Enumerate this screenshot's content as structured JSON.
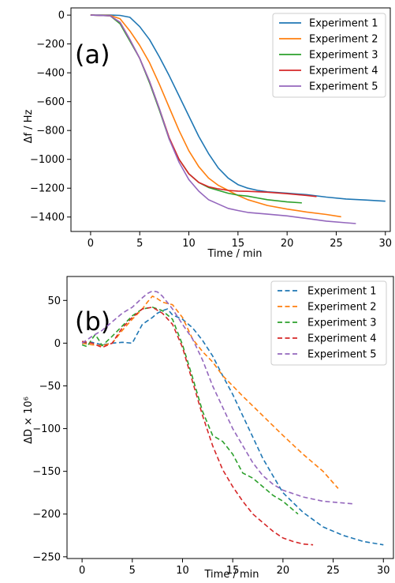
{
  "colors": {
    "experiment_1": "#1f77b4",
    "experiment_2": "#ff7f0e",
    "experiment_3": "#2ca02c",
    "experiment_4": "#d62728",
    "experiment_5": "#9467bd"
  },
  "chart_data": [
    {
      "type": "line",
      "panel_label": "(a)",
      "xlabel": "Time / min",
      "ylabel": "Δf / Hz",
      "xlim": [
        -2,
        30.5
      ],
      "ylim": [
        -1500,
        50
      ],
      "xticks": [
        0,
        5,
        10,
        15,
        20,
        25,
        30
      ],
      "yticks": [
        0,
        -200,
        -400,
        -600,
        -800,
        -1000,
        -1200,
        -1400
      ],
      "line_style": "solid",
      "grid": false,
      "legend_position": "top-right",
      "series": [
        {
          "name": "Experiment 1",
          "color": "#1f77b4",
          "points": [
            [
              0,
              0
            ],
            [
              2,
              0
            ],
            [
              3,
              -2
            ],
            [
              4,
              -15
            ],
            [
              5,
              -80
            ],
            [
              6,
              -170
            ],
            [
              7,
              -290
            ],
            [
              8,
              -420
            ],
            [
              9,
              -560
            ],
            [
              10,
              -700
            ],
            [
              11,
              -840
            ],
            [
              12,
              -960
            ],
            [
              13,
              -1060
            ],
            [
              14,
              -1130
            ],
            [
              15,
              -1175
            ],
            [
              16,
              -1200
            ],
            [
              17,
              -1215
            ],
            [
              18,
              -1225
            ],
            [
              20,
              -1235
            ],
            [
              22,
              -1245
            ],
            [
              24,
              -1262
            ],
            [
              26,
              -1275
            ],
            [
              28,
              -1282
            ],
            [
              30,
              -1290
            ]
          ]
        },
        {
          "name": "Experiment 2",
          "color": "#ff7f0e",
          "points": [
            [
              0,
              0
            ],
            [
              2,
              -2
            ],
            [
              3,
              -25
            ],
            [
              4,
              -110
            ],
            [
              5,
              -210
            ],
            [
              6,
              -330
            ],
            [
              7,
              -480
            ],
            [
              8,
              -640
            ],
            [
              9,
              -800
            ],
            [
              10,
              -940
            ],
            [
              11,
              -1050
            ],
            [
              12,
              -1130
            ],
            [
              13,
              -1180
            ],
            [
              14,
              -1215
            ],
            [
              15,
              -1250
            ],
            [
              16,
              -1280
            ],
            [
              18,
              -1320
            ],
            [
              20,
              -1345
            ],
            [
              22,
              -1365
            ],
            [
              24,
              -1382
            ],
            [
              25.5,
              -1398
            ]
          ]
        },
        {
          "name": "Experiment 3",
          "color": "#2ca02c",
          "points": [
            [
              0,
              0
            ],
            [
              2,
              -5
            ],
            [
              3,
              -60
            ],
            [
              4,
              -180
            ],
            [
              5,
              -300
            ],
            [
              6,
              -470
            ],
            [
              7,
              -660
            ],
            [
              8,
              -860
            ],
            [
              9,
              -1000
            ],
            [
              10,
              -1100
            ],
            [
              11,
              -1160
            ],
            [
              12,
              -1195
            ],
            [
              13,
              -1215
            ],
            [
              14,
              -1235
            ],
            [
              15,
              -1248
            ],
            [
              16,
              -1255
            ],
            [
              17,
              -1268
            ],
            [
              18,
              -1280
            ],
            [
              20,
              -1295
            ],
            [
              21.5,
              -1302
            ]
          ]
        },
        {
          "name": "Experiment 4",
          "color": "#d62728",
          "points": [
            [
              0,
              0
            ],
            [
              2,
              -5
            ],
            [
              3,
              -50
            ],
            [
              4,
              -170
            ],
            [
              5,
              -300
            ],
            [
              6,
              -460
            ],
            [
              7,
              -650
            ],
            [
              8,
              -850
            ],
            [
              9,
              -1000
            ],
            [
              10,
              -1100
            ],
            [
              11,
              -1160
            ],
            [
              12,
              -1190
            ],
            [
              13,
              -1205
            ],
            [
              14,
              -1215
            ],
            [
              15,
              -1220
            ],
            [
              16,
              -1222
            ],
            [
              18,
              -1228
            ],
            [
              20,
              -1238
            ],
            [
              22,
              -1250
            ],
            [
              23,
              -1258
            ]
          ]
        },
        {
          "name": "Experiment 5",
          "color": "#9467bd",
          "points": [
            [
              0,
              0
            ],
            [
              2,
              -5
            ],
            [
              3,
              -50
            ],
            [
              4,
              -170
            ],
            [
              5,
              -300
            ],
            [
              6,
              -460
            ],
            [
              7,
              -650
            ],
            [
              8,
              -860
            ],
            [
              9,
              -1020
            ],
            [
              10,
              -1140
            ],
            [
              11,
              -1220
            ],
            [
              12,
              -1280
            ],
            [
              13,
              -1310
            ],
            [
              14,
              -1340
            ],
            [
              15,
              -1355
            ],
            [
              16,
              -1368
            ],
            [
              18,
              -1380
            ],
            [
              20,
              -1392
            ],
            [
              22,
              -1410
            ],
            [
              24,
              -1428
            ],
            [
              26,
              -1440
            ],
            [
              27,
              -1445
            ]
          ]
        }
      ]
    },
    {
      "type": "line",
      "panel_label": "(b)",
      "xlabel": "Time / min",
      "ylabel": "ΔD × 10⁶",
      "xlim": [
        -1.5,
        31
      ],
      "ylim": [
        -252,
        78
      ],
      "xticks": [
        0,
        5,
        10,
        15,
        20,
        25,
        30
      ],
      "yticks": [
        50,
        0,
        -50,
        -100,
        -150,
        -200,
        -250
      ],
      "line_style": "dashed",
      "grid": false,
      "legend_position": "top-right",
      "series": [
        {
          "name": "Experiment 1",
          "color": "#1f77b4",
          "points": [
            [
              0,
              0
            ],
            [
              1,
              1
            ],
            [
              2,
              -2
            ],
            [
              3,
              0
            ],
            [
              4,
              1
            ],
            [
              5,
              0
            ],
            [
              6,
              22
            ],
            [
              7,
              30
            ],
            [
              7.5,
              35
            ],
            [
              8,
              38
            ],
            [
              8.5,
              40
            ],
            [
              9,
              33
            ],
            [
              10,
              28
            ],
            [
              11,
              18
            ],
            [
              12,
              3
            ],
            [
              13,
              -15
            ],
            [
              14,
              -38
            ],
            [
              15,
              -60
            ],
            [
              16,
              -85
            ],
            [
              17,
              -110
            ],
            [
              18,
              -135
            ],
            [
              19,
              -155
            ],
            [
              20,
              -175
            ],
            [
              22,
              -198
            ],
            [
              24,
              -215
            ],
            [
              26,
              -225
            ],
            [
              28,
              -232
            ],
            [
              30,
              -236
            ]
          ]
        },
        {
          "name": "Experiment 2",
          "color": "#ff7f0e",
          "points": [
            [
              0,
              0
            ],
            [
              1,
              -2
            ],
            [
              2,
              -3
            ],
            [
              3,
              0
            ],
            [
              4,
              15
            ],
            [
              5,
              28
            ],
            [
              6,
              40
            ],
            [
              6.5,
              48
            ],
            [
              7,
              55
            ],
            [
              7.5,
              52
            ],
            [
              8,
              48
            ],
            [
              9,
              45
            ],
            [
              10,
              30
            ],
            [
              11,
              5
            ],
            [
              12,
              -10
            ],
            [
              13,
              -22
            ],
            [
              14,
              -38
            ],
            [
              15,
              -50
            ],
            [
              16,
              -62
            ],
            [
              18,
              -85
            ],
            [
              20,
              -108
            ],
            [
              22,
              -130
            ],
            [
              24,
              -150
            ],
            [
              25.5,
              -170
            ]
          ]
        },
        {
          "name": "Experiment 3",
          "color": "#2ca02c",
          "points": [
            [
              0,
              -2
            ],
            [
              0.5,
              -4
            ],
            [
              1,
              5
            ],
            [
              1.3,
              10
            ],
            [
              1.6,
              5
            ],
            [
              2,
              -3
            ],
            [
              3,
              8
            ],
            [
              4,
              20
            ],
            [
              5,
              32
            ],
            [
              6,
              40
            ],
            [
              7,
              42
            ],
            [
              8,
              38
            ],
            [
              9,
              28
            ],
            [
              10,
              -2
            ],
            [
              11,
              -40
            ],
            [
              12,
              -80
            ],
            [
              13,
              -108
            ],
            [
              14,
              -115
            ],
            [
              15,
              -130
            ],
            [
              16,
              -152
            ],
            [
              17,
              -158
            ],
            [
              18,
              -168
            ],
            [
              19,
              -178
            ],
            [
              20,
              -185
            ],
            [
              21,
              -195
            ],
            [
              21.5,
              -200
            ]
          ]
        },
        {
          "name": "Experiment 4",
          "color": "#d62728",
          "points": [
            [
              0,
              2
            ],
            [
              1,
              0
            ],
            [
              2,
              -5
            ],
            [
              3,
              0
            ],
            [
              4,
              18
            ],
            [
              5,
              30
            ],
            [
              6,
              40
            ],
            [
              7,
              42
            ],
            [
              8,
              35
            ],
            [
              9,
              22
            ],
            [
              10,
              -5
            ],
            [
              11,
              -45
            ],
            [
              12,
              -85
            ],
            [
              13,
              -120
            ],
            [
              14,
              -148
            ],
            [
              15,
              -168
            ],
            [
              16,
              -185
            ],
            [
              17,
              -200
            ],
            [
              18,
              -210
            ],
            [
              19,
              -220
            ],
            [
              20,
              -228
            ],
            [
              21,
              -232
            ],
            [
              22,
              -235
            ],
            [
              23,
              -236
            ]
          ]
        },
        {
          "name": "Experiment 5",
          "color": "#9467bd",
          "points": [
            [
              0,
              0
            ],
            [
              1,
              8
            ],
            [
              2,
              15
            ],
            [
              3,
              25
            ],
            [
              4,
              35
            ],
            [
              5,
              42
            ],
            [
              6,
              53
            ],
            [
              6.5,
              58
            ],
            [
              7,
              61
            ],
            [
              7.5,
              60
            ],
            [
              8,
              55
            ],
            [
              9,
              40
            ],
            [
              10,
              22
            ],
            [
              11,
              5
            ],
            [
              12,
              -20
            ],
            [
              13,
              -50
            ],
            [
              14,
              -75
            ],
            [
              15,
              -100
            ],
            [
              16,
              -120
            ],
            [
              17,
              -140
            ],
            [
              18,
              -155
            ],
            [
              19,
              -165
            ],
            [
              20,
              -172
            ],
            [
              22,
              -180
            ],
            [
              24,
              -185
            ],
            [
              26,
              -187
            ],
            [
              27,
              -188
            ]
          ]
        }
      ]
    }
  ]
}
